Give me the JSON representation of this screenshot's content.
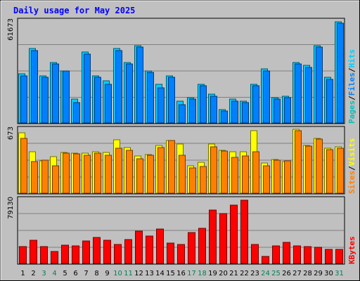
{
  "chart_data": {
    "type": "bar",
    "title": "Daily usage for May 2025",
    "categories": [
      "1",
      "2",
      "3",
      "4",
      "5",
      "6",
      "7",
      "8",
      "9",
      "10",
      "11",
      "12",
      "13",
      "14",
      "15",
      "16",
      "17",
      "18",
      "19",
      "20",
      "21",
      "22",
      "23",
      "24",
      "25",
      "26",
      "27",
      "28",
      "29",
      "30",
      "31"
    ],
    "weekend_days": [
      "3",
      "4",
      "10",
      "11",
      "17",
      "18",
      "24",
      "25",
      "31"
    ],
    "grid": true,
    "panels": [
      {
        "name": "hits-files-pages",
        "max_label": "61673",
        "ymax": 61673,
        "series": [
          {
            "name": "Hits",
            "color": "#00ccff",
            "values": [
              29000,
              44000,
              28000,
              36000,
              31000,
              14000,
              42000,
              28000,
              25000,
              44000,
              36000,
              46000,
              31000,
              23000,
              28000,
              13000,
              15000,
              23000,
              17000,
              8000,
              14000,
              13000,
              23000,
              32000,
              15000,
              16000,
              36000,
              34000,
              46000,
              27000,
              60000
            ]
          },
          {
            "name": "Files",
            "color": "#0080ff",
            "values": [
              28000,
              43000,
              27000,
              35000,
              31000,
              12000,
              41000,
              27000,
              23000,
              43000,
              35000,
              45000,
              30000,
              21000,
              27000,
              11000,
              14000,
              22000,
              16000,
              7000,
              13000,
              12000,
              22000,
              31000,
              14000,
              15000,
              35000,
              33000,
              45000,
              26000,
              59000
            ]
          },
          {
            "name": "Pages",
            "color": "#00c0c0",
            "values": [
              0,
              0,
              0,
              0,
              0,
              0,
              0,
              0,
              0,
              0,
              0,
              0,
              0,
              0,
              0,
              0,
              0,
              0,
              0,
              0,
              0,
              0,
              0,
              0,
              0,
              0,
              0,
              0,
              0,
              0,
              0
            ]
          }
        ]
      },
      {
        "name": "visits-sites",
        "max_label": "673",
        "ymax": 673,
        "series": [
          {
            "name": "Visits",
            "color": "#ffff00",
            "values": [
              615,
              420,
              330,
              370,
              415,
              405,
              410,
              420,
              415,
              545,
              465,
              380,
              395,
              490,
              540,
              500,
              280,
              315,
              500,
              440,
              420,
              420,
              635,
              310,
              345,
              325,
              650,
              490,
              560,
              460,
              470
            ]
          },
          {
            "name": "Sites",
            "color": "#ff8000",
            "values": [
              560,
              320,
              340,
              280,
              410,
              400,
              390,
              410,
              390,
              460,
              435,
              350,
              385,
              465,
              540,
              390,
              255,
              270,
              470,
              430,
              365,
              380,
              420,
              280,
              335,
              330,
              640,
              480,
              550,
              445,
              455
            ]
          }
        ]
      },
      {
        "name": "kbytes",
        "max_label": "79130",
        "ymax": 79130,
        "series": [
          {
            "name": "KBytes",
            "color": "#ff0000",
            "values": [
              20000,
              28000,
              20000,
              14000,
              22000,
              21000,
              27000,
              31000,
              28000,
              23000,
              29000,
              39000,
              33000,
              41000,
              24000,
              23000,
              37000,
              42000,
              64000,
              60000,
              70000,
              76000,
              23000,
              8000,
              21000,
              25000,
              21000,
              20000,
              19000,
              17000,
              17000
            ]
          }
        ]
      }
    ]
  }
}
